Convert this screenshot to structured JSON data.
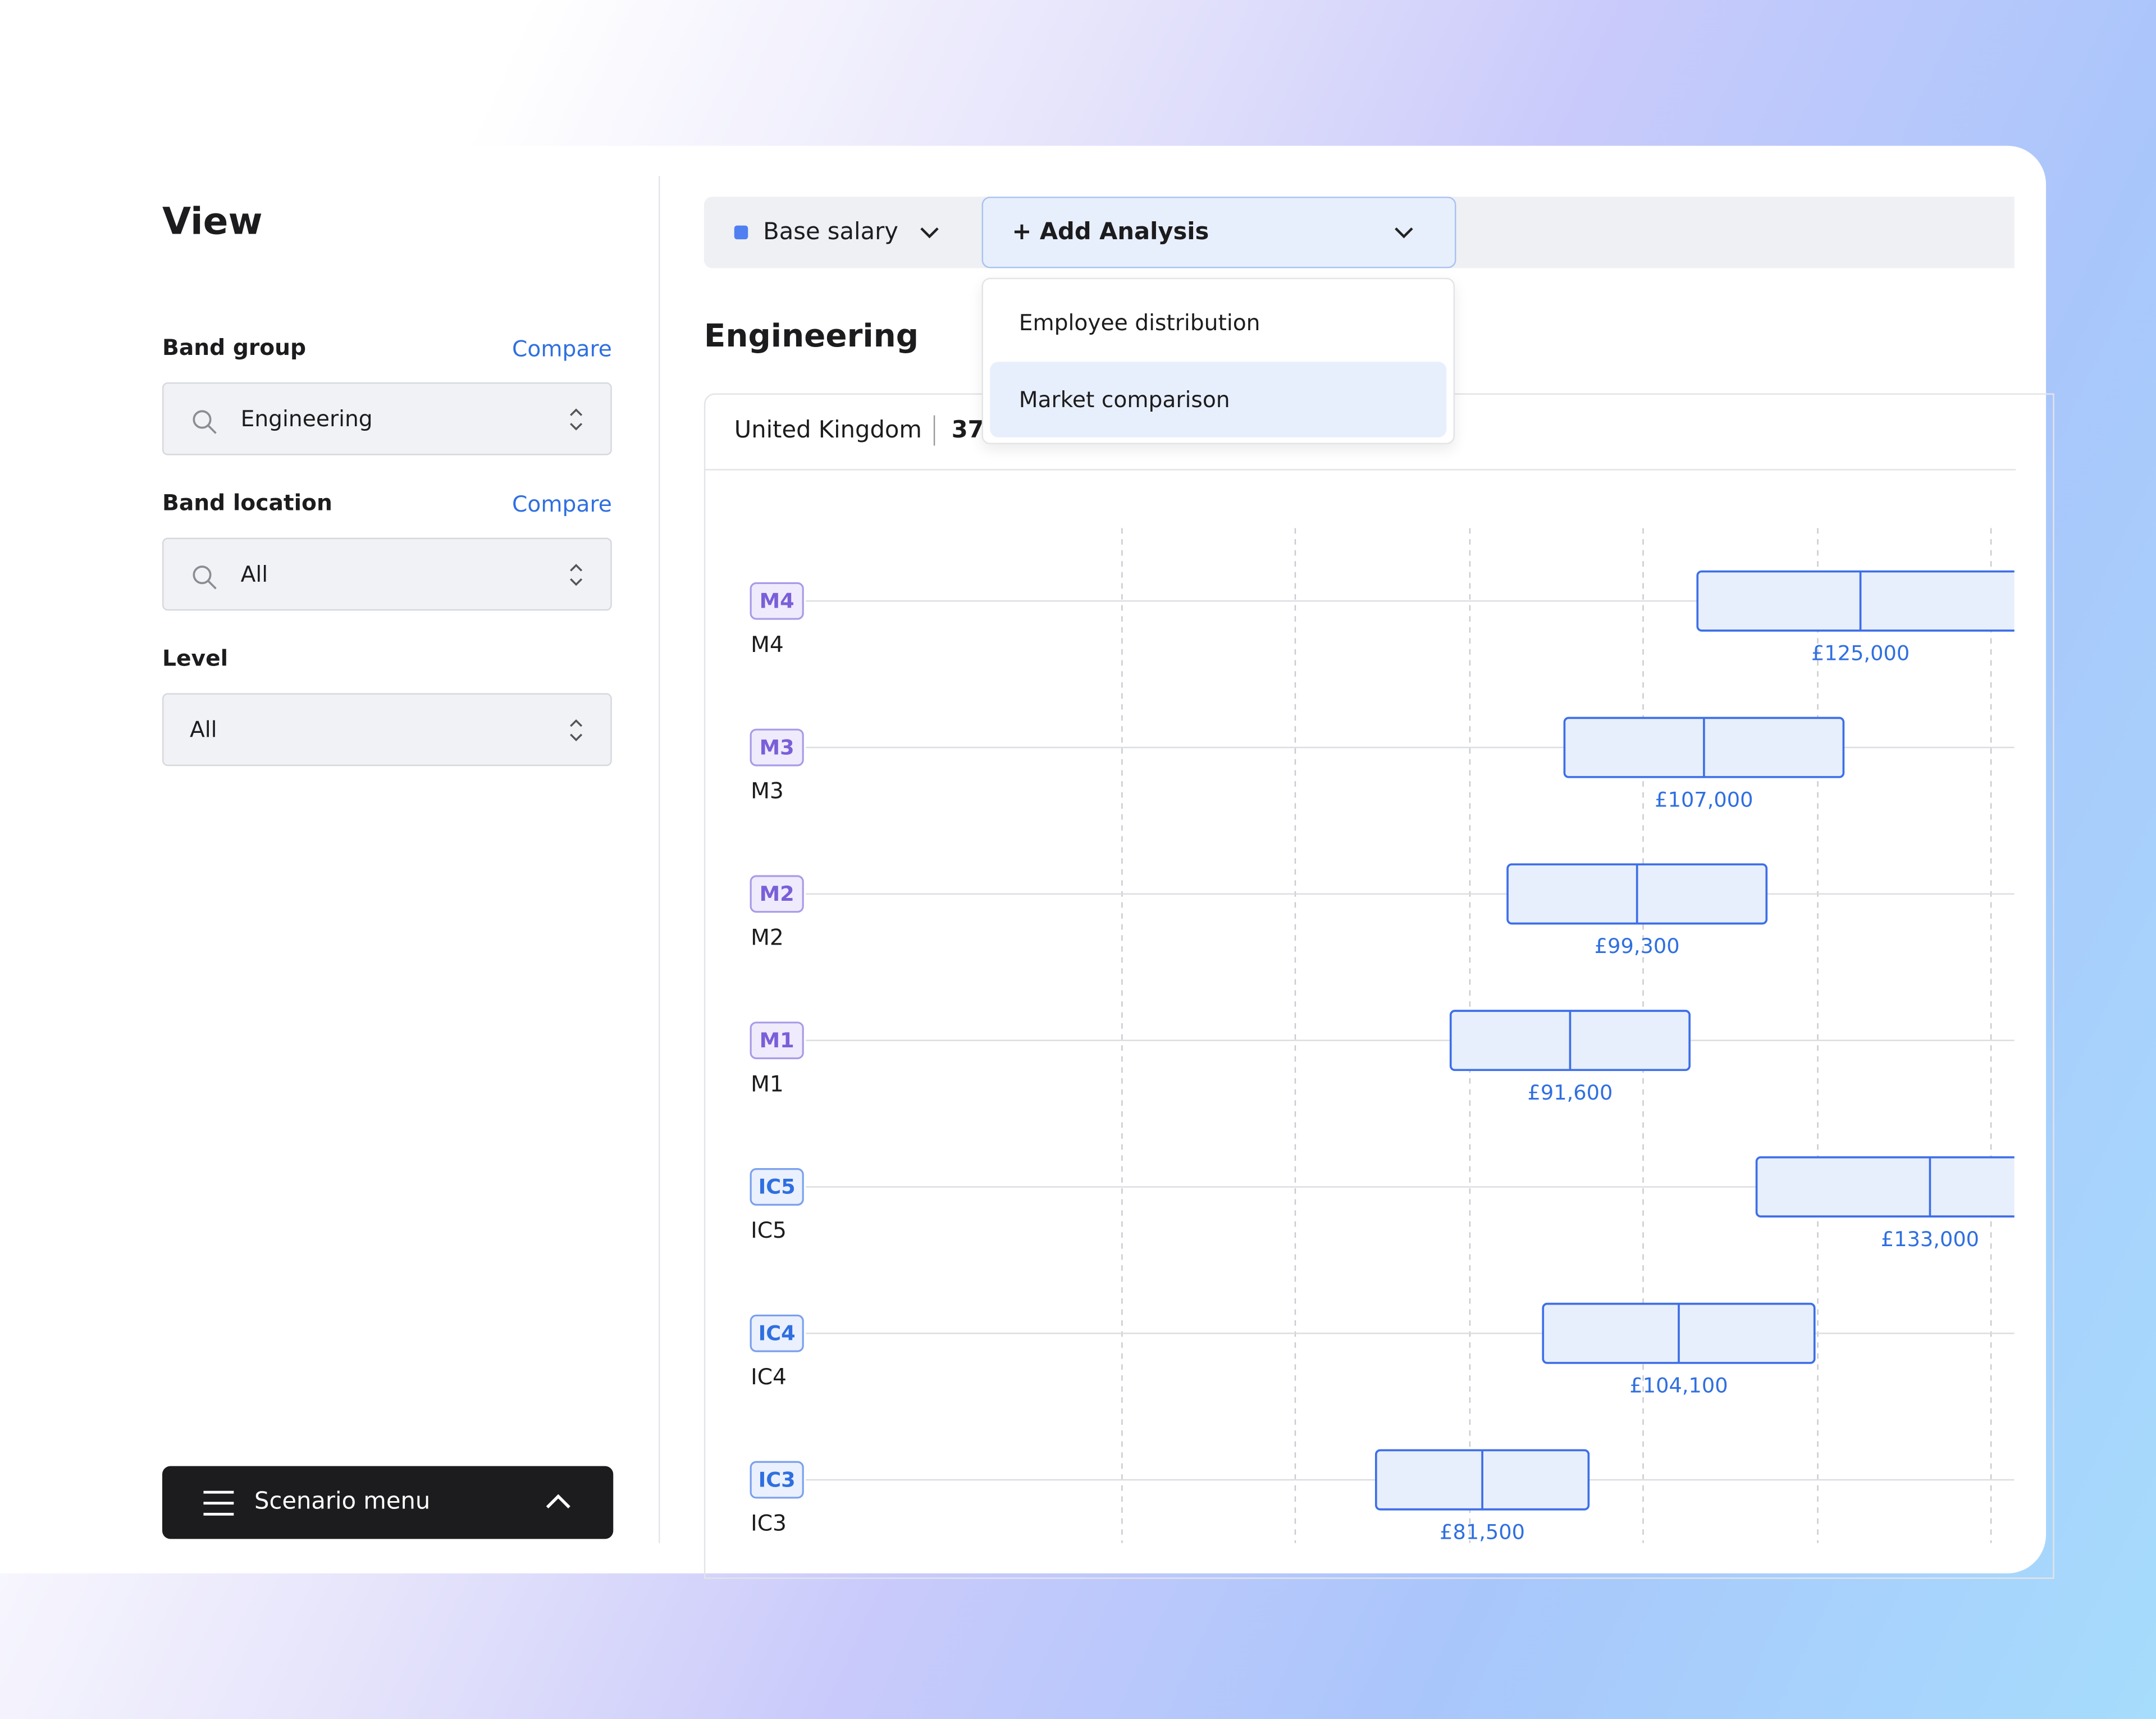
{
  "sidebar": {
    "title": "View",
    "band_group": {
      "label": "Band group",
      "compare": "Compare",
      "value": "Engineering"
    },
    "band_location": {
      "label": "Band location",
      "compare": "Compare",
      "value": "All"
    },
    "level": {
      "label": "Level",
      "value": "All"
    },
    "scenario_menu": "Scenario menu"
  },
  "toolbar": {
    "metric": "Base salary",
    "add_analysis": "+ Add Analysis",
    "menu": [
      "Employee distribution",
      "Market comparison"
    ]
  },
  "heading": "Engineering",
  "panel": {
    "location": "United Kingdom",
    "count": 37
  },
  "bands": [
    {
      "badge": "M4",
      "label": "M4",
      "midpoint": 125000,
      "midpoint_label": "£125,000"
    },
    {
      "badge": "M3",
      "label": "M3",
      "midpoint": 107000,
      "midpoint_label": "£107,000"
    },
    {
      "badge": "M2",
      "label": "M2",
      "midpoint": 99300,
      "midpoint_label": "£99,300"
    },
    {
      "badge": "M1",
      "label": "M1",
      "midpoint": 91600,
      "midpoint_label": "£91,600"
    },
    {
      "badge": "IC5",
      "label": "IC5",
      "midpoint": 133000,
      "midpoint_label": "£133,000"
    },
    {
      "badge": "IC4",
      "label": "IC4",
      "midpoint": 104100,
      "midpoint_label": "£104,100"
    },
    {
      "badge": "IC3",
      "label": "IC3",
      "midpoint": 81500,
      "midpoint_label": "£81,500"
    }
  ]
}
